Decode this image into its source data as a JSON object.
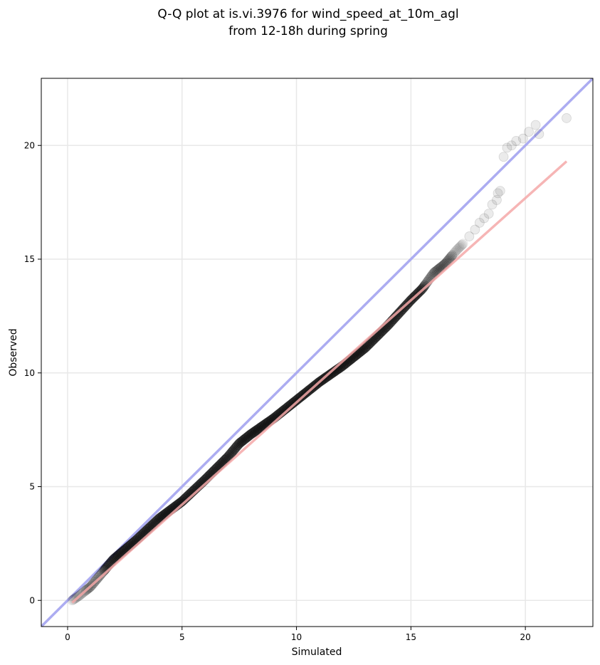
{
  "chart_data": {
    "type": "scatter",
    "title_line1": "Q-Q plot at is.vi.3976 for wind_speed_at_10m_agl",
    "title_line2": "from 12-18h during spring",
    "xlabel": "Simulated",
    "ylabel": "Observed",
    "xlim": [
      -1.15,
      22.95
    ],
    "ylim": [
      -1.15,
      22.95
    ],
    "xticks": [
      0,
      5,
      10,
      15,
      20
    ],
    "yticks": [
      0,
      5,
      10,
      15,
      20
    ],
    "grid": true,
    "colors": {
      "points": "#000000",
      "identity_line": "#a8a8f0",
      "fit_line": "#f4a8a8",
      "grid": "#e8e8e8"
    },
    "identity_line": {
      "x": [
        -1.15,
        22.95
      ],
      "y": [
        -1.15,
        22.95
      ]
    },
    "fit_line": {
      "x": [
        0.2,
        21.8
      ],
      "y": [
        -0.1,
        19.3
      ]
    },
    "control_points": {
      "x": [
        0.2,
        0.5,
        1.0,
        1.5,
        2.0,
        3.0,
        4.0,
        5.0,
        6.0,
        7.0,
        7.5,
        8.0,
        9.0,
        10.0,
        11.0,
        12.0,
        12.5,
        13.0,
        14.0,
        15.0,
        15.5,
        16.0,
        16.5,
        17.0,
        17.3
      ],
      "y": [
        0.0,
        0.2,
        0.6,
        1.2,
        1.8,
        2.65,
        3.6,
        4.35,
        5.3,
        6.3,
        6.9,
        7.3,
        8.0,
        8.8,
        9.6,
        10.3,
        10.7,
        11.1,
        12.1,
        13.2,
        13.7,
        14.4,
        14.8,
        15.4,
        15.7
      ]
    },
    "tail_points": {
      "x": [
        17.55,
        17.8,
        18.0,
        18.2,
        18.4,
        18.55,
        18.75,
        18.8,
        18.9,
        19.05,
        19.2,
        19.4,
        19.6,
        19.9,
        20.15,
        20.45,
        20.6,
        21.8
      ],
      "y": [
        16.0,
        16.3,
        16.6,
        16.8,
        17.0,
        17.4,
        17.6,
        17.9,
        18.0,
        19.5,
        19.9,
        20.0,
        20.2,
        20.3,
        20.6,
        20.9,
        20.5,
        21.2
      ]
    }
  }
}
